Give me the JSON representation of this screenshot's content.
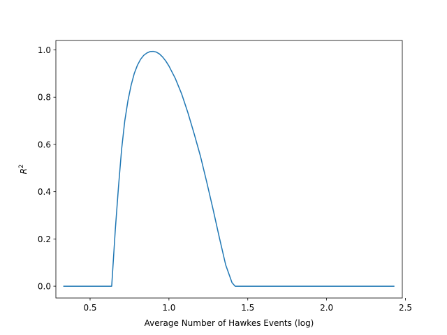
{
  "chart_data": {
    "type": "line",
    "title": "",
    "xlabel": "Average Number of Hawkes Events (log)",
    "ylabel": "R",
    "ylabel_superscript": "2",
    "xlim": [
      0.283,
      2.48
    ],
    "ylim": [
      -0.05,
      1.04
    ],
    "xticks": [
      0.5,
      1.0,
      1.5,
      2.0,
      2.5
    ],
    "xtick_labels": [
      "0.5",
      "1.0",
      "1.5",
      "2.0",
      "2.5"
    ],
    "yticks": [
      0.0,
      0.2,
      0.4,
      0.6,
      0.8,
      1.0
    ],
    "ytick_labels": [
      "0.0",
      "0.2",
      "0.4",
      "0.6",
      "0.8",
      "1.0"
    ],
    "grid": false,
    "series": [
      {
        "color": "#1f77b4",
        "x": [
          0.33,
          0.4,
          0.5,
          0.58,
          0.63,
          0.637,
          0.66,
          0.68,
          0.7,
          0.72,
          0.74,
          0.76,
          0.78,
          0.8,
          0.82,
          0.84,
          0.86,
          0.88,
          0.9,
          0.92,
          0.94,
          0.96,
          0.98,
          1.0,
          1.04,
          1.08,
          1.12,
          1.16,
          1.2,
          1.24,
          1.28,
          1.32,
          1.36,
          1.4,
          1.42,
          1.5,
          1.7,
          1.9,
          2.1,
          2.3,
          2.43
        ],
        "y": [
          0.0,
          0.0,
          0.0,
          0.0,
          0.0,
          0.0,
          0.24,
          0.42,
          0.58,
          0.7,
          0.785,
          0.85,
          0.9,
          0.935,
          0.96,
          0.977,
          0.987,
          0.993,
          0.994,
          0.991,
          0.983,
          0.97,
          0.953,
          0.932,
          0.88,
          0.815,
          0.735,
          0.645,
          0.55,
          0.44,
          0.325,
          0.205,
          0.09,
          0.015,
          0.0,
          0.0,
          0.0,
          0.0,
          0.0,
          0.0,
          0.0
        ]
      }
    ]
  }
}
